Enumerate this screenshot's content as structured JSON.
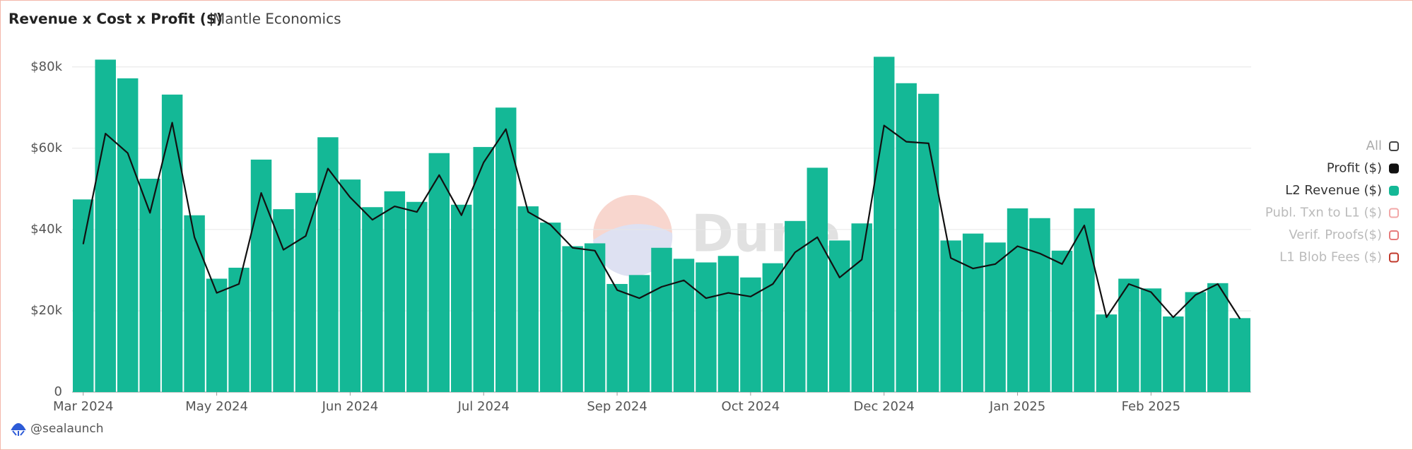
{
  "chart_data": {
    "type": "bar-line",
    "title": "Revenue x Cost x Profit ($)",
    "subtitle": "Mantle Economics",
    "watermark": "Dune",
    "footer": "@sealaunch",
    "legend_all": "All",
    "legend_position": "right",
    "grid": true,
    "categories": [
      "Mar 2024",
      null,
      null,
      null,
      null,
      null,
      "May 2024",
      null,
      null,
      null,
      null,
      null,
      "Jun 2024",
      null,
      null,
      null,
      null,
      null,
      "Jul 2024",
      null,
      null,
      null,
      null,
      null,
      "Sep 2024",
      null,
      null,
      null,
      null,
      null,
      "Oct 2024",
      null,
      null,
      null,
      null,
      null,
      "Dec 2024",
      null,
      null,
      null,
      null,
      null,
      "Jan 2025",
      null,
      null,
      null,
      null,
      null,
      "Feb 2025",
      null,
      null,
      null,
      null
    ],
    "series": [
      {
        "name": "Profit ($)",
        "color": "#111111",
        "kind": "line",
        "values": [
          36400,
          63600,
          58800,
          44100,
          66300,
          38100,
          24400,
          26600,
          49000,
          35000,
          38400,
          55000,
          47900,
          42400,
          45700,
          44300,
          53400,
          43500,
          56500,
          64700,
          44300,
          41200,
          35500,
          34800,
          25100,
          23100,
          25900,
          27500,
          23100,
          24400,
          23500,
          26600,
          34400,
          38100,
          28200,
          32600,
          65600,
          61600,
          61200,
          33000,
          30400,
          31500,
          35900,
          34100,
          31500,
          41000,
          18400,
          26600,
          24600,
          18400,
          23900,
          26600,
          18000
        ]
      },
      {
        "name": "L2 Revenue ($)",
        "color": "#14b896",
        "kind": "bar",
        "values": [
          47400,
          81800,
          77200,
          52500,
          73200,
          43500,
          27900,
          30600,
          57200,
          45000,
          49000,
          62700,
          52300,
          45500,
          49400,
          46800,
          58800,
          46100,
          60300,
          70000,
          45700,
          41700,
          35900,
          36600,
          26600,
          28800,
          35500,
          32800,
          31900,
          33500,
          28200,
          31700,
          42100,
          55200,
          37300,
          41500,
          82500,
          76000,
          73400,
          37300,
          39000,
          36800,
          45200,
          42800,
          34800,
          45200,
          19100,
          27900,
          25500,
          18600,
          24600,
          26800,
          18200
        ]
      }
    ],
    "hidden_series": [
      {
        "name": "Publ. Txn to L1 ($)",
        "color": "#f2a7a7"
      },
      {
        "name": "Verif. Proofs($)",
        "color": "#e77b7b"
      },
      {
        "name": "L1 Blob Fees ($)",
        "color": "#c0392b"
      }
    ],
    "ylim": [
      0,
      85000
    ],
    "yticks": [
      0,
      {
        "value": 20000,
        "label": "$20k"
      },
      {
        "value": 40000,
        "label": "$40k"
      },
      {
        "value": 60000,
        "label": "$60k"
      },
      {
        "value": 80000,
        "label": "$80k"
      }
    ]
  }
}
